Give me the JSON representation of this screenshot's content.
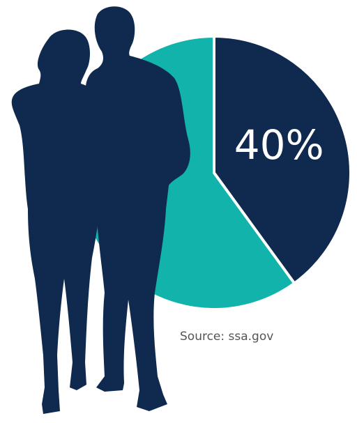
{
  "chart_data": {
    "type": "pie",
    "values": [
      40,
      60
    ],
    "value_labels": [
      "40%",
      null
    ],
    "colors": [
      "#0f2a4e",
      "#12b3aa"
    ],
    "start_angle": 0,
    "direction": "clockwise",
    "source": "Source: ssa.gov"
  }
}
